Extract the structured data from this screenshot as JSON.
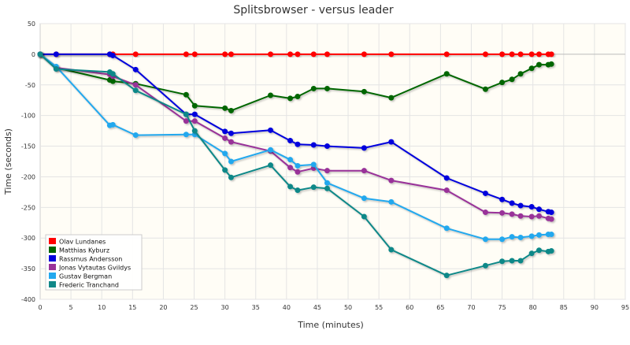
{
  "chart_data": {
    "type": "line",
    "title": "Splitsbrowser - versus leader",
    "xlabel": "Time (minutes)",
    "ylabel": "Time (seconds)",
    "xlim": [
      0,
      95
    ],
    "ylim": [
      -400,
      50
    ],
    "xticks": [
      0,
      5,
      10,
      15,
      20,
      25,
      30,
      35,
      40,
      45,
      50,
      55,
      60,
      65,
      70,
      75,
      80,
      85,
      90,
      95
    ],
    "yticks": [
      50,
      0,
      -50,
      -100,
      -150,
      -200,
      -250,
      -300,
      -350,
      -400
    ],
    "grid": true,
    "legend_position": "bottom-left",
    "series": [
      {
        "name": "Olav Lundanes",
        "color": "#ff0000",
        "x": [
          0,
          2.6,
          11.3,
          11.8,
          15.5,
          23.7,
          25.1,
          30.0,
          31.0,
          37.4,
          40.6,
          41.8,
          44.4,
          46.6,
          52.6,
          57.0,
          66.0,
          72.3,
          75.0,
          76.6,
          78.0,
          79.8,
          81.0,
          82.5,
          83.0
        ],
        "y": [
          0,
          0,
          0,
          0,
          0,
          0,
          0,
          0,
          0,
          0,
          0,
          0,
          0,
          0,
          0,
          0,
          0,
          0,
          0,
          0,
          0,
          0,
          0,
          0,
          0
        ]
      },
      {
        "name": "Matthias Kyburz",
        "color": "#006600",
        "x": [
          0,
          2.6,
          11.3,
          11.8,
          15.5,
          23.7,
          25.1,
          30.0,
          31.0,
          37.4,
          40.6,
          41.8,
          44.4,
          46.6,
          52.6,
          57.0,
          66.0,
          72.3,
          75.0,
          76.6,
          78.0,
          79.8,
          81.0,
          82.5,
          83.0
        ],
        "y": [
          0,
          -22,
          -42,
          -44,
          -48,
          -66,
          -84,
          -88,
          -92,
          -67,
          -72,
          -69,
          -56,
          -56,
          -61,
          -71,
          -32,
          -57,
          -46,
          -41,
          -32,
          -23,
          -17,
          -17,
          -16
        ]
      },
      {
        "name": "Rassmus Andersson",
        "color": "#0000dd",
        "x": [
          0,
          2.6,
          11.3,
          11.8,
          15.5,
          23.7,
          25.1,
          30.0,
          31.0,
          37.4,
          40.6,
          41.8,
          44.4,
          46.6,
          52.6,
          57.0,
          66.0,
          72.3,
          75.0,
          76.6,
          78.0,
          79.8,
          81.0,
          82.5,
          83.0
        ],
        "y": [
          0,
          0,
          0,
          -2,
          -25,
          -98,
          -98,
          -126,
          -129,
          -124,
          -141,
          -147,
          -148,
          -150,
          -153,
          -143,
          -202,
          -227,
          -237,
          -243,
          -247,
          -249,
          -253,
          -257,
          -258
        ]
      },
      {
        "name": "Jonas Vytautas Gvildys",
        "color": "#993399",
        "x": [
          0,
          2.6,
          11.3,
          11.8,
          15.5,
          23.7,
          25.1,
          30.0,
          31.0,
          37.4,
          40.6,
          41.8,
          44.4,
          46.6,
          52.6,
          57.0,
          66.0,
          72.3,
          75.0,
          76.6,
          78.0,
          79.8,
          81.0,
          82.5,
          83.0
        ],
        "y": [
          0,
          -22,
          -33,
          -36,
          -50,
          -109,
          -109,
          -137,
          -143,
          -158,
          -185,
          -192,
          -186,
          -190,
          -190,
          -206,
          -222,
          -258,
          -259,
          -261,
          -264,
          -265,
          -264,
          -268,
          -269
        ]
      },
      {
        "name": "Gustav Bergman",
        "color": "#22a8ee",
        "x": [
          0,
          2.6,
          11.3,
          11.8,
          15.5,
          23.7,
          25.1,
          30.0,
          31.0,
          37.4,
          40.6,
          41.8,
          44.4,
          46.6,
          52.6,
          57.0,
          66.0,
          72.3,
          75.0,
          76.6,
          78.0,
          79.8,
          81.0,
          82.5,
          83.0
        ],
        "y": [
          0,
          -20,
          -116,
          -115,
          -132,
          -131,
          -131,
          -162,
          -175,
          -156,
          -172,
          -182,
          -180,
          -210,
          -235,
          -241,
          -284,
          -302,
          -302,
          -298,
          -299,
          -297,
          -295,
          -294,
          -294
        ]
      },
      {
        "name": "Frederic Tranchand",
        "color": "#118888",
        "x": [
          0,
          2.6,
          11.3,
          11.8,
          15.5,
          23.7,
          25.1,
          30.0,
          31.0,
          37.4,
          40.6,
          41.8,
          44.4,
          46.6,
          52.6,
          57.0,
          66.0,
          72.3,
          75.0,
          76.6,
          78.0,
          79.8,
          81.0,
          82.5,
          83.0
        ],
        "y": [
          0,
          -24,
          -29,
          -32,
          -59,
          -98,
          -125,
          -189,
          -201,
          -181,
          -216,
          -222,
          -217,
          -219,
          -265,
          -319,
          -361,
          -345,
          -338,
          -337,
          -337,
          -325,
          -320,
          -322,
          -321
        ]
      }
    ]
  }
}
